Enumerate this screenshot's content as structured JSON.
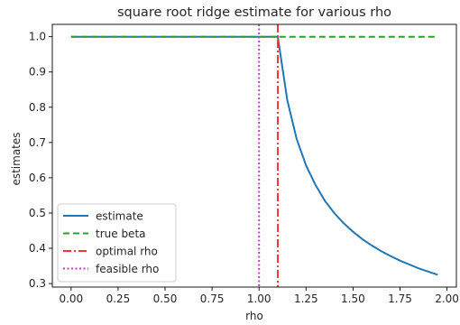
{
  "chart_data": {
    "type": "line",
    "title": "square root ridge estimate for various rho",
    "xlabel": "rho",
    "ylabel": "estimates",
    "xlim": [
      -0.1,
      2.05
    ],
    "ylim": [
      0.29,
      1.035
    ],
    "xticks": [
      "0.00",
      "0.25",
      "0.50",
      "0.75",
      "1.00",
      "1.25",
      "1.50",
      "1.75",
      "2.00"
    ],
    "xtick_values": [
      0,
      0.25,
      0.5,
      0.75,
      1.0,
      1.25,
      1.5,
      1.75,
      2.0
    ],
    "yticks": [
      "0.3",
      "0.4",
      "0.5",
      "0.6",
      "0.7",
      "0.8",
      "0.9",
      "1.0"
    ],
    "ytick_values": [
      0.3,
      0.4,
      0.5,
      0.6,
      0.7,
      0.8,
      0.9,
      1.0
    ],
    "grid": false,
    "legend_position": "lower-left",
    "series": [
      {
        "name": "estimate",
        "style": "solid",
        "color": "#1f77b4",
        "x": [
          0.0,
          1.1,
          1.15,
          1.2,
          1.25,
          1.3,
          1.35,
          1.4,
          1.45,
          1.5,
          1.55,
          1.6,
          1.65,
          1.7,
          1.75,
          1.8,
          1.85,
          1.9,
          1.95
        ],
        "y": [
          1.0,
          1.0,
          0.82,
          0.71,
          0.635,
          0.58,
          0.535,
          0.5,
          0.471,
          0.447,
          0.426,
          0.408,
          0.392,
          0.378,
          0.365,
          0.354,
          0.343,
          0.334,
          0.325
        ]
      },
      {
        "name": "true beta",
        "style": "dashed",
        "color": "#2ca02c",
        "x": [
          0.0,
          1.95
        ],
        "y": [
          1.0,
          1.0
        ]
      }
    ],
    "vlines": [
      {
        "name": "optimal rho",
        "x": 1.1,
        "style": "dashdot",
        "color": "#ff3333"
      },
      {
        "name": "feasible rho",
        "x": 1.0,
        "style": "dotted",
        "color": "#cc33dd"
      }
    ]
  }
}
